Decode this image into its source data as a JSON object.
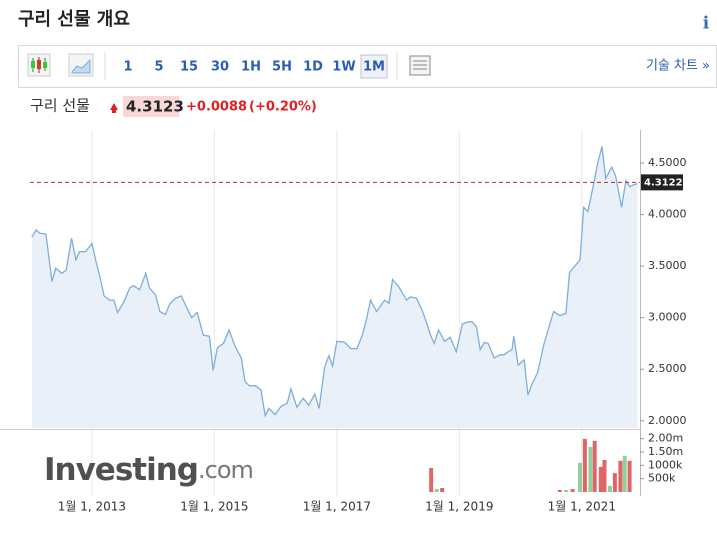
{
  "header": {
    "title": "구리 선물 개요",
    "info": "i"
  },
  "toolbar": {
    "intervals": [
      "1",
      "5",
      "15",
      "30",
      "1H",
      "5H",
      "1D",
      "1W",
      "1M"
    ],
    "selected_index": 8,
    "technical": "기술 차트 »"
  },
  "quote": {
    "name": "구리 선물",
    "price": "4.3123",
    "change": "+0.0088",
    "change_percent": "(+0.20%)"
  },
  "watermark": {
    "brand": "Investing",
    "suffix": ".com"
  },
  "chart_data": {
    "type": "line",
    "x": [
      2012.02,
      2012.09,
      2012.15,
      2012.25,
      2012.35,
      2012.41,
      2012.51,
      2012.58,
      2012.67,
      2012.74,
      2012.8,
      2012.9,
      2013.0,
      2013.07,
      2013.13,
      2013.2,
      2013.29,
      2013.36,
      2013.42,
      2013.52,
      2013.62,
      2013.68,
      2013.78,
      2013.88,
      2013.94,
      2014.04,
      2014.11,
      2014.2,
      2014.27,
      2014.37,
      2014.46,
      2014.53,
      2014.63,
      2014.72,
      2014.82,
      2014.92,
      2014.98,
      2015.05,
      2015.15,
      2015.24,
      2015.34,
      2015.44,
      2015.5,
      2015.57,
      2015.67,
      2015.76,
      2015.83,
      2015.89,
      2015.99,
      2016.09,
      2016.19,
      2016.25,
      2016.35,
      2016.45,
      2016.54,
      2016.64,
      2016.71,
      2016.8,
      2016.87,
      2016.93,
      2017.0,
      2017.13,
      2017.23,
      2017.33,
      2017.42,
      2017.49,
      2017.55,
      2017.65,
      2017.78,
      2017.85,
      2017.91,
      2018.01,
      2018.07,
      2018.14,
      2018.2,
      2018.3,
      2018.4,
      2018.46,
      2018.53,
      2018.59,
      2018.66,
      2018.76,
      2018.85,
      2018.95,
      2019.05,
      2019.15,
      2019.21,
      2019.28,
      2019.34,
      2019.41,
      2019.47,
      2019.57,
      2019.67,
      2019.73,
      2019.8,
      2019.86,
      2019.89,
      2019.96,
      2020.06,
      2020.12,
      2020.19,
      2020.28,
      2020.38,
      2020.45,
      2020.54,
      2020.64,
      2020.74,
      2020.8,
      2020.9,
      2020.97,
      2021.03,
      2021.1,
      2021.2,
      2021.26,
      2021.33,
      2021.39,
      2021.49,
      2021.55,
      2021.65,
      2021.72,
      2021.78,
      2021.85,
      2021.91
    ],
    "series": [
      {
        "color": "#7eaedc",
        "fill": "#e9f0f7",
        "values": [
          3.78,
          3.85,
          3.82,
          3.81,
          3.35,
          3.48,
          3.43,
          3.46,
          3.77,
          3.56,
          3.64,
          3.64,
          3.72,
          3.54,
          3.4,
          3.21,
          3.17,
          3.17,
          3.05,
          3.15,
          3.29,
          3.31,
          3.27,
          3.43,
          3.29,
          3.22,
          3.06,
          3.03,
          3.13,
          3.19,
          3.21,
          3.12,
          3.0,
          3.05,
          2.83,
          2.82,
          2.49,
          2.71,
          2.75,
          2.88,
          2.72,
          2.61,
          2.38,
          2.34,
          2.34,
          2.3,
          2.05,
          2.12,
          2.06,
          2.14,
          2.17,
          2.31,
          2.13,
          2.22,
          2.15,
          2.26,
          2.12,
          2.52,
          2.63,
          2.53,
          2.77,
          2.76,
          2.7,
          2.7,
          2.84,
          3.0,
          3.17,
          3.06,
          3.17,
          3.14,
          3.37,
          3.3,
          3.24,
          3.17,
          3.2,
          3.19,
          3.06,
          2.96,
          2.83,
          2.75,
          2.88,
          2.77,
          2.81,
          2.67,
          2.94,
          2.96,
          2.96,
          2.91,
          2.69,
          2.76,
          2.75,
          2.61,
          2.64,
          2.64,
          2.67,
          2.69,
          2.82,
          2.54,
          2.59,
          2.25,
          2.36,
          2.47,
          2.74,
          2.88,
          3.06,
          3.02,
          3.04,
          3.44,
          3.51,
          3.56,
          4.07,
          4.03,
          4.32,
          4.5,
          4.66,
          4.35,
          4.46,
          4.38,
          4.07,
          4.33,
          4.27,
          4.29,
          4.3
        ]
      }
    ],
    "xlim": [
      2011.99,
      2021.95
    ],
    "ylim": [
      1.93,
      4.82
    ],
    "xticks": [
      {
        "value": 2013,
        "label": "1월 1, 2013"
      },
      {
        "value": 2015,
        "label": "1월 1, 2015"
      },
      {
        "value": 2017,
        "label": "1월 1, 2017"
      },
      {
        "value": 2019,
        "label": "1월 1, 2019"
      },
      {
        "value": 2021,
        "label": "1월 1, 2021"
      }
    ],
    "yticks": [
      {
        "value": 2.0,
        "label": "2.0000"
      },
      {
        "value": 2.5,
        "label": "2.5000"
      },
      {
        "value": 3.0,
        "label": "3.0000"
      },
      {
        "value": 3.5,
        "label": "3.5000"
      },
      {
        "value": 4.0,
        "label": "4.0000"
      },
      {
        "value": 4.5,
        "label": "4.5000"
      }
    ],
    "grid": "x",
    "reference_line": 4.3122,
    "reference_color": "#b03030",
    "volume": {
      "x": [
        2018.54,
        2018.63,
        2018.72,
        2020.64,
        2020.74,
        2020.85,
        2020.97,
        2021.05,
        2021.14,
        2021.21,
        2021.31,
        2021.37,
        2021.46,
        2021.54,
        2021.63,
        2021.7,
        2021.78
      ],
      "values": [
        900000,
        110000,
        150000,
        75000,
        75000,
        110000,
        1090000,
        1990000,
        1690000,
        1920000,
        940000,
        1200000,
        230000,
        710000,
        1170000,
        1350000,
        1170000
      ],
      "colors": [
        "#e06666",
        "#8fd19e",
        "#e06666",
        "#e06666",
        "#8fd19e",
        "#e06666",
        "#8fd19e",
        "#e06666",
        "#8fd19e",
        "#e06666",
        "#e06666",
        "#e06666",
        "#8fd19e",
        "#e06666",
        "#e06666",
        "#8fd19e",
        "#e06666"
      ],
      "ylim": [
        0,
        2100000
      ],
      "yticks": [
        {
          "value": 500000,
          "label": "500k"
        },
        {
          "value": 1000000,
          "label": "1000k"
        },
        {
          "value": 1500000,
          "label": "1.50m"
        },
        {
          "value": 2000000,
          "label": "2.00m"
        }
      ]
    }
  }
}
